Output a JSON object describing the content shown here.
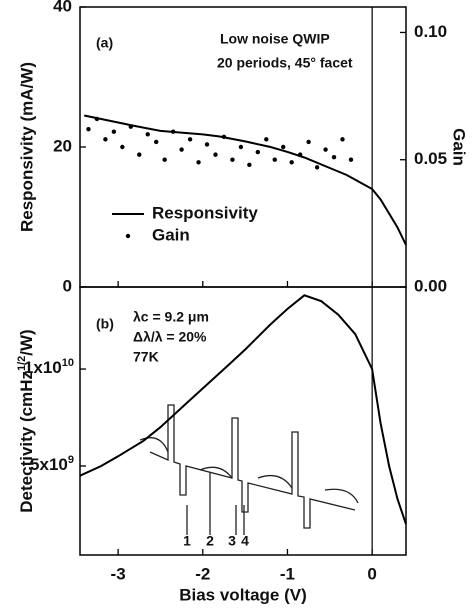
{
  "chart_data": [
    {
      "type": "line",
      "ylabel": "Responsivity (mA/W)",
      "y2label": "Gain",
      "annotations": [
        "(a)",
        "Low noise QWIP",
        "20 periods, 45° facet"
      ],
      "xlim": [
        -3.45,
        0.4
      ],
      "xticks": [
        -3,
        -2,
        -1,
        0
      ],
      "ylim": [
        0,
        40
      ],
      "yticks": [
        0,
        20,
        40
      ],
      "y2lim": [
        0,
        0.11
      ],
      "y2ticks": [
        {
          "value": 0,
          "label": "0.00"
        },
        {
          "value": 0.05,
          "label": "0.05"
        },
        {
          "value": 0.1,
          "label": "0.10"
        }
      ],
      "vline": 0,
      "series": [
        {
          "name": "Responsivity",
          "style": "line",
          "color": "#000000",
          "x": [
            -3.4,
            -3.2,
            -3.0,
            -2.8,
            -2.5,
            -2.2,
            -2.0,
            -1.8,
            -1.5,
            -1.2,
            -1.0,
            -0.8,
            -0.5,
            -0.3,
            0.0,
            0.1,
            0.2,
            0.3,
            0.4
          ],
          "values": [
            24.5,
            24,
            23.5,
            23,
            22.3,
            22,
            21.8,
            21.5,
            20.8,
            20,
            19.3,
            18.5,
            17,
            16,
            14,
            12.5,
            10.5,
            8.5,
            6
          ]
        },
        {
          "name": "Gain",
          "style": "dots",
          "axis": "y2",
          "color": "#000000",
          "x": [
            -3.35,
            -3.25,
            -3.15,
            -3.05,
            -2.95,
            -2.85,
            -2.75,
            -2.65,
            -2.55,
            -2.45,
            -2.35,
            -2.25,
            -2.15,
            -2.05,
            -1.95,
            -1.85,
            -1.75,
            -1.65,
            -1.55,
            -1.45,
            -1.35,
            -1.25,
            -1.15,
            -1.05,
            -0.95,
            -0.85,
            -0.75,
            -0.65,
            -0.55,
            -0.45,
            -0.35,
            -0.25
          ],
          "values": [
            0.062,
            0.066,
            0.058,
            0.061,
            0.055,
            0.063,
            0.052,
            0.06,
            0.057,
            0.05,
            0.061,
            0.054,
            0.058,
            0.049,
            0.056,
            0.052,
            0.059,
            0.05,
            0.055,
            0.048,
            0.053,
            0.058,
            0.05,
            0.055,
            0.049,
            0.052,
            0.057,
            0.047,
            0.054,
            0.051,
            0.058,
            0.05
          ]
        }
      ]
    },
    {
      "type": "line",
      "xlabel": "Bias voltage (V)",
      "ylabel": [
        "Detectivity (cmHz",
        "1/2",
        "/W)"
      ],
      "annotations": [
        "(b)",
        "λc = 9.2 μm",
        "Δλ/λ = 20%",
        "77K",
        "1",
        "2",
        "3",
        "4"
      ],
      "xlim": [
        -3.45,
        0.4
      ],
      "xticks": [
        -3,
        -2,
        -1,
        0
      ],
      "ylim": [
        410000000,
        14230000000
      ],
      "yticks": [
        {
          "value": 5000000000,
          "label": "5x10",
          "sup": "9"
        },
        {
          "value": 10000000000,
          "label": "1x10",
          "sup": "10"
        }
      ],
      "vline": 0,
      "series": [
        {
          "name": "Detectivity",
          "style": "line",
          "color": "#000000",
          "x": [
            -3.45,
            -3.2,
            -3.0,
            -2.7,
            -2.5,
            -2.2,
            -2.0,
            -1.7,
            -1.5,
            -1.2,
            -1.0,
            -0.8,
            -0.6,
            -0.4,
            -0.2,
            0.0,
            0.1,
            0.2,
            0.3,
            0.4
          ],
          "values": [
            4500000000,
            5000000000,
            5500000000,
            6300000000,
            7000000000,
            8200000000,
            9000000000,
            10200000000,
            11000000000,
            12300000000,
            13100000000,
            13800000000,
            13500000000,
            12800000000,
            11800000000,
            10000000000,
            7200000000,
            5000000000,
            3300000000,
            2000000000
          ]
        }
      ]
    }
  ]
}
